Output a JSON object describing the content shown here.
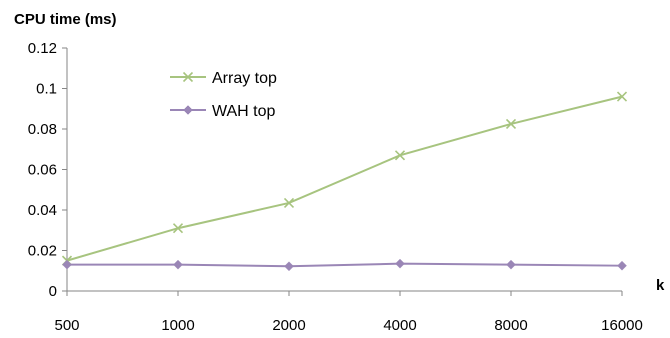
{
  "chart_data": {
    "type": "line",
    "ylabel": "CPU time (ms)",
    "xlabel": "k",
    "categories": [
      "500",
      "1000",
      "2000",
      "4000",
      "8000",
      "16000"
    ],
    "ylim": [
      0,
      0.12
    ],
    "yticks": [
      "0",
      "0.02",
      "0.04",
      "0.06",
      "0.08",
      "0.1",
      "0.12"
    ],
    "grid": false,
    "legend_position": "top-left",
    "series": [
      {
        "name": "Array top",
        "color": "#a7c47f",
        "marker": "x",
        "values": [
          0.015,
          0.031,
          0.0435,
          0.067,
          0.0825,
          0.096
        ]
      },
      {
        "name": "WAH top",
        "color": "#9a86b6",
        "marker": "diamond",
        "values": [
          0.013,
          0.013,
          0.0122,
          0.0135,
          0.013,
          0.0125
        ]
      }
    ]
  }
}
